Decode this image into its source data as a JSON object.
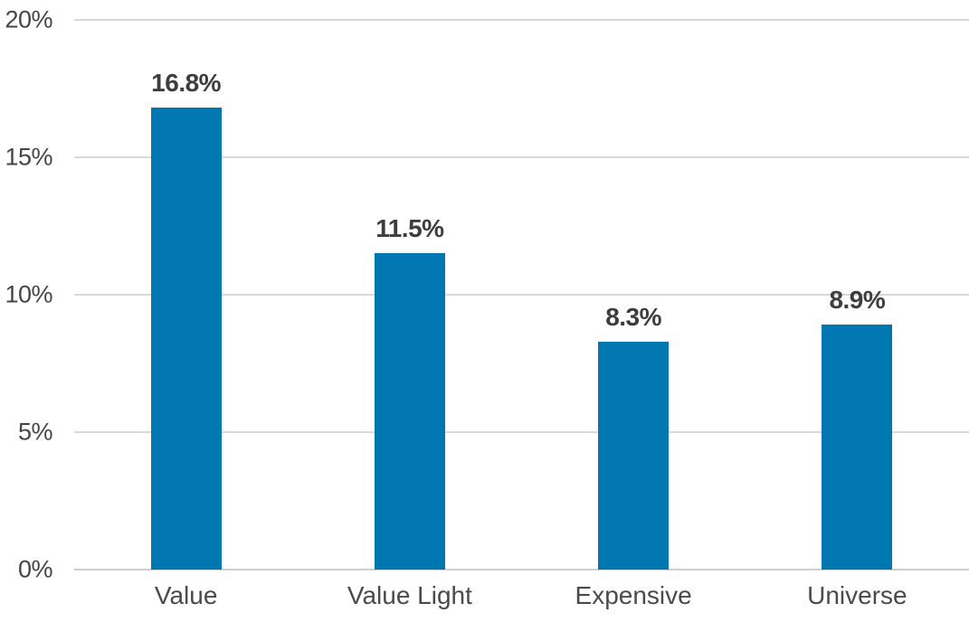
{
  "chart_data": {
    "type": "bar",
    "categories": [
      "Value",
      "Value Light",
      "Expensive",
      "Universe"
    ],
    "values": [
      16.8,
      11.5,
      8.3,
      8.9
    ],
    "data_labels": [
      "16.8%",
      "11.5%",
      "8.3%",
      "8.9%"
    ],
    "title": "",
    "xlabel": "",
    "ylabel": "",
    "ylim": [
      0,
      20
    ],
    "yticks": [
      0,
      5,
      10,
      15,
      20
    ],
    "ytick_labels": [
      "0%",
      "5%",
      "10%",
      "15%",
      "20%"
    ],
    "grid": true,
    "legend": false,
    "bar_color": "#0177b2",
    "data_label_color": "#3d3d3d",
    "axis_text_color": "#454545",
    "gridline_color": "#d9d9d9"
  }
}
